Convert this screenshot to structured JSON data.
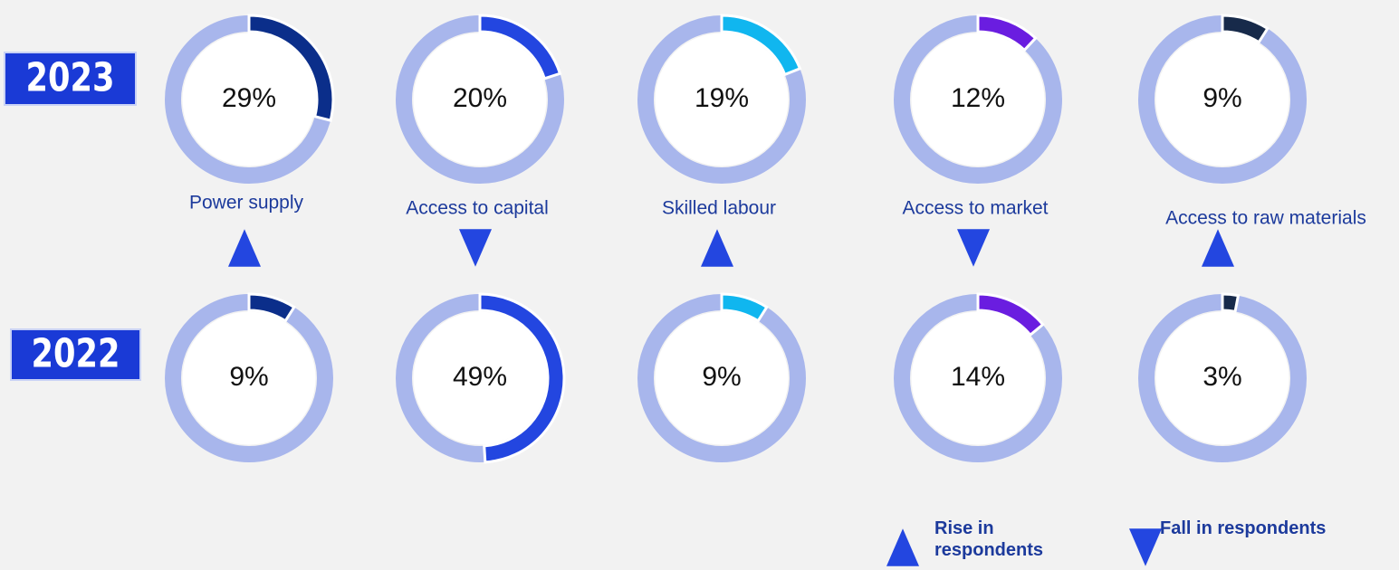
{
  "chart_data": {
    "type": "donut",
    "categories": [
      "Power supply",
      "Access to capital",
      "Skilled labour",
      "Access to market",
      "Access to raw materials"
    ],
    "colors": [
      "#0b2e8a",
      "#2346e0",
      "#10b6ef",
      "#6a1de0",
      "#172a4a"
    ],
    "track_color": "#a8b6ec",
    "series": [
      {
        "name": "2023",
        "values": [
          29,
          20,
          19,
          12,
          9
        ],
        "value_labels": [
          "29%",
          "20%",
          "19%",
          "12%",
          "9%"
        ]
      },
      {
        "name": "2022",
        "values": [
          9,
          49,
          9,
          14,
          3
        ],
        "value_labels": [
          "9%",
          "49%",
          "9%",
          "14%",
          "3%"
        ]
      }
    ],
    "legend": {
      "rise": "Rise in respondents",
      "fall": "Fall in respondents"
    }
  }
}
